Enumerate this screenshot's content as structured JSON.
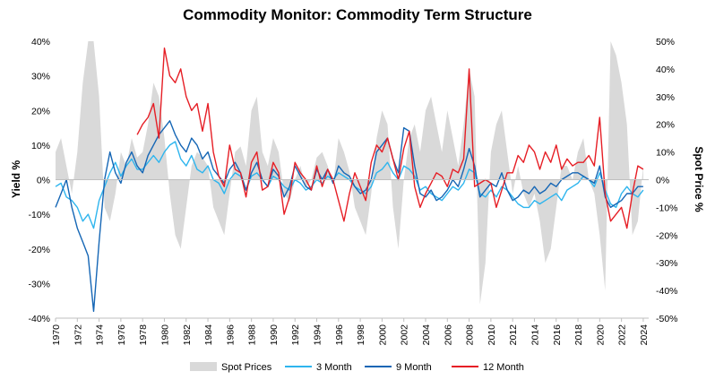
{
  "title": "Commodity Monitor: Commodity Term Structure",
  "chart_data": {
    "type": "line",
    "title": "Commodity Monitor: Commodity Term Structure",
    "ylabel_left": "Yield %",
    "ylabel_right": "Spot Price %",
    "xlim": [
      1970,
      2024.5
    ],
    "ylim_left": [
      -40,
      40
    ],
    "ylim_right": [
      -50,
      50
    ],
    "x_ticks": [
      1970,
      1972,
      1974,
      1976,
      1978,
      1980,
      1982,
      1984,
      1986,
      1988,
      1990,
      1992,
      1994,
      1996,
      1998,
      2000,
      2002,
      2004,
      2006,
      2008,
      2010,
      2012,
      2014,
      2016,
      2018,
      2020,
      2022,
      2024
    ],
    "y_ticks_left": [
      40,
      30,
      20,
      10,
      0,
      -10,
      -20,
      -30,
      -40
    ],
    "y_ticks_right": [
      50,
      40,
      30,
      20,
      10,
      0,
      -10,
      -20,
      -30,
      -40,
      -50
    ],
    "tick_format": "percent",
    "grid": false,
    "legend_position": "bottom",
    "series": [
      {
        "name": "Spot Prices",
        "kind": "area",
        "axis": "right",
        "color": "#d9d9d9",
        "x": [
          1970,
          1970.5,
          1971,
          1971.5,
          1972,
          1972.5,
          1973,
          1973.5,
          1974,
          1974.5,
          1975,
          1975.5,
          1976,
          1976.5,
          1977,
          1977.5,
          1978,
          1978.5,
          1979,
          1979.5,
          1980,
          1980.5,
          1981,
          1981.5,
          1982,
          1982.5,
          1983,
          1983.5,
          1984,
          1984.5,
          1985,
          1985.5,
          1986,
          1986.5,
          1987,
          1987.5,
          1988,
          1988.5,
          1989,
          1989.5,
          1990,
          1990.5,
          1991,
          1991.5,
          1992,
          1992.5,
          1993,
          1993.5,
          1994,
          1994.5,
          1995,
          1995.5,
          1996,
          1996.5,
          1997,
          1997.5,
          1998,
          1998.5,
          1999,
          1999.5,
          2000,
          2000.5,
          2001,
          2001.5,
          2002,
          2002.5,
          2003,
          2003.5,
          2004,
          2004.5,
          2005,
          2005.5,
          2006,
          2006.5,
          2007,
          2007.5,
          2008,
          2008.5,
          2009,
          2009.5,
          2010,
          2010.5,
          2011,
          2011.5,
          2012,
          2012.5,
          2013,
          2013.5,
          2014,
          2014.5,
          2015,
          2015.5,
          2016,
          2016.5,
          2017,
          2017.5,
          2018,
          2018.5,
          2019,
          2019.5,
          2020,
          2020.5,
          2021,
          2021.5,
          2022,
          2022.5,
          2023,
          2023.5,
          2024
        ],
        "values": [
          10,
          15,
          5,
          -5,
          10,
          35,
          50,
          50,
          30,
          -10,
          -15,
          -5,
          10,
          5,
          15,
          8,
          10,
          20,
          35,
          30,
          15,
          -5,
          -20,
          -25,
          -10,
          5,
          10,
          8,
          5,
          -10,
          -15,
          -20,
          -5,
          10,
          12,
          5,
          25,
          30,
          10,
          5,
          15,
          10,
          -5,
          -8,
          0,
          5,
          -3,
          0,
          8,
          10,
          5,
          -2,
          15,
          10,
          3,
          -10,
          -15,
          -20,
          -5,
          15,
          25,
          20,
          -10,
          -25,
          0,
          15,
          20,
          10,
          25,
          30,
          20,
          10,
          25,
          15,
          5,
          20,
          40,
          30,
          -45,
          -30,
          10,
          20,
          25,
          10,
          -5,
          5,
          -5,
          -10,
          -5,
          -15,
          -30,
          -25,
          -10,
          5,
          5,
          0,
          10,
          15,
          0,
          -5,
          -20,
          -40,
          50,
          45,
          35,
          20,
          -20,
          -15,
          5
        ]
      },
      {
        "name": "3 Month",
        "kind": "line",
        "axis": "left",
        "color": "#2eb5ee",
        "x": [
          1970,
          1970.5,
          1971,
          1971.5,
          1972,
          1972.5,
          1973,
          1973.5,
          1974,
          1974.5,
          1975,
          1975.5,
          1976,
          1976.5,
          1977,
          1977.5,
          1978,
          1978.5,
          1979,
          1979.5,
          1980,
          1980.5,
          1981,
          1981.5,
          1982,
          1982.5,
          1983,
          1983.5,
          1984,
          1984.5,
          1985,
          1985.5,
          1986,
          1986.5,
          1987,
          1987.5,
          1988,
          1988.5,
          1989,
          1989.5,
          1990,
          1990.5,
          1991,
          1991.5,
          1992,
          1992.5,
          1993,
          1993.5,
          1994,
          1994.5,
          1995,
          1995.5,
          1996,
          1996.5,
          1997,
          1997.5,
          1998,
          1998.5,
          1999,
          1999.5,
          2000,
          2000.5,
          2001,
          2001.5,
          2002,
          2002.5,
          2003,
          2003.5,
          2004,
          2004.5,
          2005,
          2005.5,
          2006,
          2006.5,
          2007,
          2007.5,
          2008,
          2008.5,
          2009,
          2009.5,
          2010,
          2010.5,
          2011,
          2011.5,
          2012,
          2012.5,
          2013,
          2013.5,
          2014,
          2014.5,
          2015,
          2015.5,
          2016,
          2016.5,
          2017,
          2017.5,
          2018,
          2018.5,
          2019,
          2019.5,
          2020,
          2020.5,
          2021,
          2021.5,
          2022,
          2022.5,
          2023,
          2023.5,
          2024
        ],
        "values": [
          -2,
          -1,
          -5,
          -6,
          -8,
          -12,
          -10,
          -14,
          -6,
          -2,
          2,
          5,
          1,
          4,
          6,
          3,
          3,
          5,
          7,
          5,
          8,
          10,
          11,
          6,
          4,
          7,
          3,
          2,
          4,
          0,
          -1,
          -4,
          0,
          2,
          1,
          -3,
          1,
          2,
          0,
          -2,
          1,
          0,
          -2,
          -3,
          0,
          -1,
          -3,
          -2,
          0,
          -1,
          1,
          0,
          2,
          1,
          0,
          -2,
          -3,
          -4,
          -2,
          2,
          3,
          5,
          2,
          0,
          4,
          3,
          1,
          -3,
          -2,
          -4,
          -5,
          -6,
          -4,
          -2,
          -3,
          -1,
          3,
          2,
          -4,
          -5,
          -3,
          -5,
          -2,
          -3,
          -5,
          -7,
          -8,
          -8,
          -6,
          -7,
          -6,
          -5,
          -4,
          -6,
          -3,
          -2,
          -1,
          1,
          0,
          -2,
          2,
          -3,
          -7,
          -8,
          -4,
          -2,
          -4,
          -5,
          -3
        ]
      },
      {
        "name": "9 Month",
        "kind": "line",
        "axis": "left",
        "color": "#1566b5",
        "x": [
          1970,
          1970.5,
          1971,
          1971.5,
          1972,
          1972.5,
          1973,
          1973.5,
          1974,
          1974.5,
          1975,
          1975.5,
          1976,
          1976.5,
          1977,
          1977.5,
          1978,
          1978.5,
          1979,
          1979.5,
          1980,
          1980.5,
          1981,
          1981.5,
          1982,
          1982.5,
          1983,
          1983.5,
          1984,
          1984.5,
          1985,
          1985.5,
          1986,
          1986.5,
          1987,
          1987.5,
          1988,
          1988.5,
          1989,
          1989.5,
          1990,
          1990.5,
          1991,
          1991.5,
          1992,
          1992.5,
          1993,
          1993.5,
          1994,
          1994.5,
          1995,
          1995.5,
          1996,
          1996.5,
          1997,
          1997.5,
          1998,
          1998.5,
          1999,
          1999.5,
          2000,
          2000.5,
          2001,
          2001.5,
          2002,
          2002.5,
          2003,
          2003.5,
          2004,
          2004.5,
          2005,
          2005.5,
          2006,
          2006.5,
          2007,
          2007.5,
          2008,
          2008.5,
          2009,
          2009.5,
          2010,
          2010.5,
          2011,
          2011.5,
          2012,
          2012.5,
          2013,
          2013.5,
          2014,
          2014.5,
          2015,
          2015.5,
          2016,
          2016.5,
          2017,
          2017.5,
          2018,
          2018.5,
          2019,
          2019.5,
          2020,
          2020.5,
          2021,
          2021.5,
          2022,
          2022.5,
          2023,
          2023.5,
          2024
        ],
        "values": [
          -8,
          -4,
          0,
          -8,
          -14,
          -18,
          -22,
          -38,
          -18,
          0,
          8,
          2,
          -1,
          5,
          8,
          4,
          2,
          7,
          10,
          13,
          15,
          17,
          13,
          10,
          8,
          12,
          10,
          6,
          8,
          3,
          1,
          -1,
          3,
          5,
          2,
          -3,
          2,
          5,
          0,
          -2,
          3,
          1,
          -5,
          -2,
          4,
          1,
          -2,
          -3,
          3,
          0,
          3,
          -1,
          4,
          2,
          1,
          -2,
          -4,
          -3,
          0,
          8,
          10,
          12,
          6,
          2,
          15,
          14,
          4,
          -4,
          -5,
          -3,
          -6,
          -5,
          -3,
          0,
          -2,
          3,
          9,
          4,
          -5,
          -3,
          -1,
          -2,
          2,
          -3,
          -6,
          -5,
          -3,
          -4,
          -2,
          -4,
          -3,
          -1,
          -2,
          0,
          1,
          2,
          2,
          1,
          0,
          -1,
          4,
          -5,
          -8,
          -7,
          -6,
          -4,
          -4,
          -2,
          -2
        ]
      },
      {
        "name": "12 Month",
        "kind": "line",
        "axis": "left",
        "color": "#e61e25",
        "x": [
          1977.5,
          1978,
          1978.5,
          1979,
          1979.5,
          1980,
          1980.5,
          1981,
          1981.5,
          1982,
          1982.5,
          1983,
          1983.5,
          1984,
          1984.5,
          1985,
          1985.5,
          1986,
          1986.5,
          1987,
          1987.5,
          1988,
          1988.5,
          1989,
          1989.5,
          1990,
          1990.5,
          1991,
          1991.5,
          1992,
          1992.5,
          1993,
          1993.5,
          1994,
          1994.5,
          1995,
          1995.5,
          1996,
          1996.5,
          1997,
          1997.5,
          1998,
          1998.5,
          1999,
          1999.5,
          2000,
          2000.5,
          2001,
          2001.5,
          2002,
          2002.5,
          2003,
          2003.5,
          2004,
          2004.5,
          2005,
          2005.5,
          2006,
          2006.5,
          2007,
          2007.5,
          2008,
          2008.5,
          2009,
          2009.5,
          2010,
          2010.5,
          2011,
          2011.5,
          2012,
          2012.5,
          2013,
          2013.5,
          2014,
          2014.5,
          2015,
          2015.5,
          2016,
          2016.5,
          2017,
          2017.5,
          2018,
          2018.5,
          2019,
          2019.5,
          2020,
          2020.5,
          2021,
          2021.5,
          2022,
          2022.5,
          2023,
          2023.5,
          2024
        ],
        "values": [
          13,
          16,
          18,
          22,
          12,
          38,
          30,
          28,
          32,
          24,
          20,
          22,
          14,
          22,
          8,
          1,
          -2,
          10,
          3,
          2,
          -5,
          5,
          8,
          -3,
          -2,
          5,
          2,
          -10,
          -5,
          5,
          2,
          0,
          -3,
          4,
          -2,
          3,
          0,
          -6,
          -12,
          -4,
          2,
          -2,
          -6,
          5,
          10,
          8,
          12,
          6,
          0,
          9,
          14,
          -2,
          -8,
          -4,
          -1,
          2,
          1,
          -2,
          3,
          2,
          6,
          32,
          -2,
          -1,
          0,
          -1,
          -8,
          -3,
          2,
          2,
          7,
          5,
          10,
          8,
          3,
          8,
          5,
          10,
          3,
          6,
          4,
          5,
          5,
          7,
          4,
          18,
          -4,
          -12,
          -10,
          -8,
          -14,
          -4,
          4,
          3
        ]
      }
    ]
  }
}
